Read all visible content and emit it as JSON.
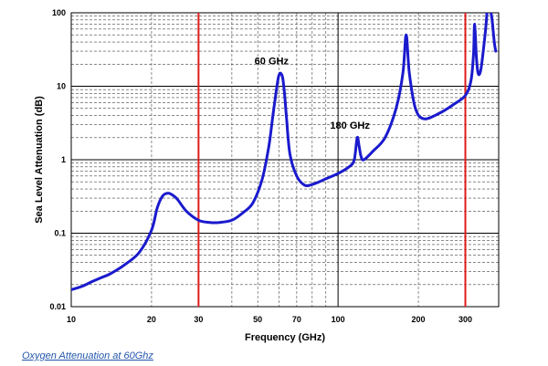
{
  "caption": "Oxygen Attenuation at 60Ghz",
  "chart_data": {
    "type": "line",
    "xlabel": "Frequency (GHz)",
    "ylabel": "Sea Level Attenuation (dB)",
    "xscale": "log",
    "yscale": "log",
    "xlim": [
      10,
      400
    ],
    "ylim": [
      0.01,
      100
    ],
    "grid": true,
    "x_ticks": [
      "10",
      "20",
      "30",
      "50",
      "70",
      "100",
      "200",
      "300"
    ],
    "y_ticks": [
      "0.01",
      "0.1",
      "1",
      "10",
      "100"
    ],
    "line_color": "#1a1acd",
    "marker_color": "#e01b1b",
    "vertical_markers": [
      30,
      300
    ],
    "annotations": [
      {
        "text": "60 GHz",
        "x": 60,
        "y": 15
      },
      {
        "text": "180 GHz",
        "x": 118,
        "y": 2
      }
    ],
    "series": [
      {
        "x": [
          10,
          11,
          12,
          13,
          14,
          16,
          18,
          20,
          21,
          22,
          23,
          24,
          25,
          27,
          30,
          33,
          36,
          40,
          44,
          48,
          52,
          55,
          57,
          59,
          60,
          61,
          62,
          63,
          64,
          66,
          70,
          75,
          80,
          85,
          90,
          100,
          110,
          115,
          118,
          120,
          122,
          125,
          135,
          150,
          165,
          175,
          180,
          185,
          195,
          210,
          240,
          270,
          300,
          315,
          322,
          325,
          330,
          335,
          342,
          350,
          360,
          368,
          372,
          378,
          385,
          390
        ],
        "y": [
          0.017,
          0.019,
          0.022,
          0.025,
          0.028,
          0.038,
          0.055,
          0.11,
          0.22,
          0.32,
          0.35,
          0.33,
          0.29,
          0.2,
          0.15,
          0.14,
          0.14,
          0.15,
          0.19,
          0.26,
          0.55,
          1.5,
          4,
          10,
          14,
          15,
          13,
          8,
          4,
          1.2,
          0.6,
          0.45,
          0.46,
          0.5,
          0.55,
          0.65,
          0.8,
          1.0,
          2.0,
          1.5,
          1.1,
          1.0,
          1.3,
          2.0,
          5,
          15,
          50,
          15,
          5,
          3.6,
          4.3,
          5.6,
          7.5,
          12,
          28,
          70,
          25,
          15,
          16,
          30,
          80,
          300,
          120,
          80,
          40,
          30
        ]
      }
    ]
  }
}
